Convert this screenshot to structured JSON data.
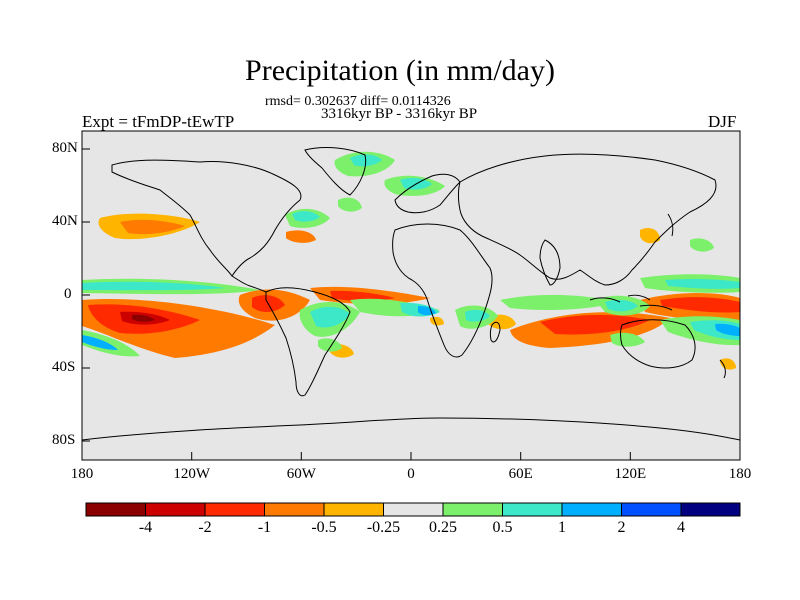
{
  "title": "Precipitation (in mm/day)",
  "stats": "rmsd= 0.302637 diff= 0.0114326",
  "period": "3316kyr BP - 3316kyr BP",
  "experiment": "Expt = tFmDP-tEwTP",
  "season": "DJF",
  "lat_ticks": [
    "80N",
    "40N",
    "0",
    "40S",
    "80S"
  ],
  "lon_ticks": [
    "180",
    "120W",
    "60W",
    "0",
    "60E",
    "120E",
    "180"
  ],
  "colorbar": {
    "labels": [
      "-4",
      "-2",
      "-1",
      "-0.5",
      "-0.25",
      "0.25",
      "0.5",
      "1",
      "2",
      "4"
    ],
    "colors": [
      "#8b0000",
      "#cd0000",
      "#ff2a00",
      "#ff7a00",
      "#ffb400",
      "#e6e6e6",
      "#7cf06b",
      "#3ce8c8",
      "#00b0ff",
      "#0050ff",
      "#000080"
    ]
  },
  "colors": {
    "ocean": "#e6e6e6",
    "coast": "#000000"
  }
}
